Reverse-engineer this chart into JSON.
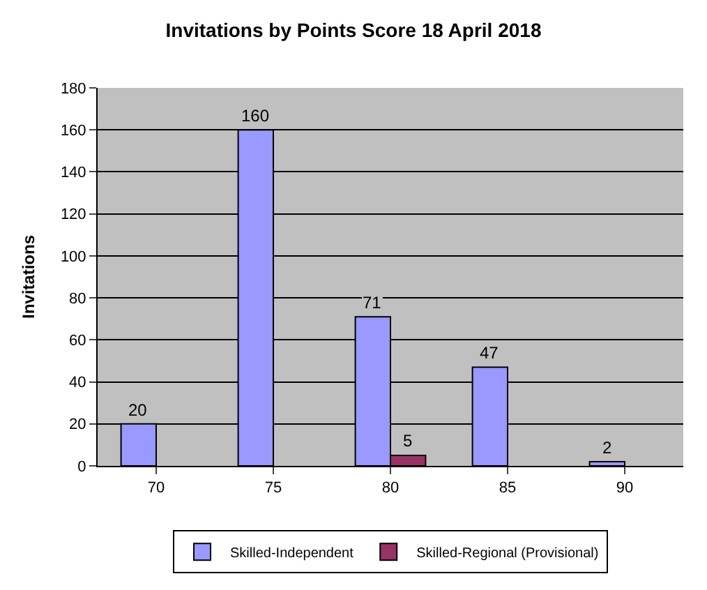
{
  "chart_data": {
    "type": "bar",
    "title": "Invitations by Points Score 18 April 2018",
    "ylabel": "Invitations",
    "categories": [
      "70",
      "75",
      "80",
      "85",
      "90"
    ],
    "series": [
      {
        "name": "Skilled-Independent",
        "color": "#9999ff",
        "values": [
          20,
          160,
          71,
          47,
          2
        ]
      },
      {
        "name": "Skilled-Regional (Provisional)",
        "color": "#993366",
        "values": [
          null,
          null,
          5,
          null,
          null
        ]
      }
    ],
    "ylim": [
      0,
      180
    ],
    "yticks": [
      0,
      20,
      40,
      60,
      80,
      100,
      120,
      140,
      160,
      180
    ],
    "grid": "y",
    "legend": "bottom",
    "data_labels": true
  }
}
